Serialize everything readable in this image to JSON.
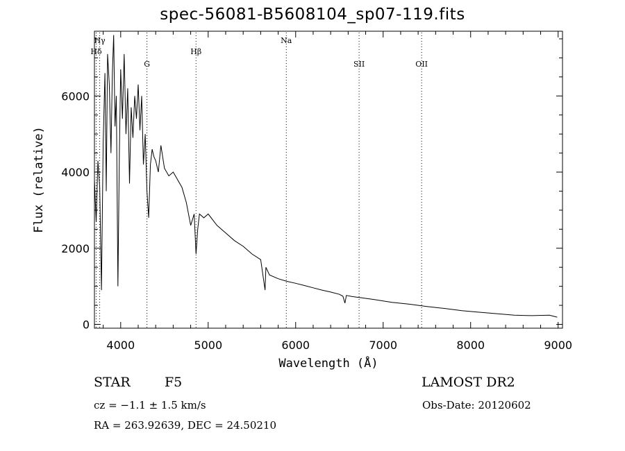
{
  "chart_data": {
    "type": "line",
    "title": "spec-56081-B5608104_sp07-119.fits",
    "xlabel": "Wavelength (Å)",
    "ylabel": "Flux (relative)",
    "xlim": [
      3700,
      9050
    ],
    "ylim": [
      -100,
      7700
    ],
    "x_ticks": [
      4000,
      5000,
      6000,
      7000,
      8000,
      9000
    ],
    "x_tick_labels": [
      "4000",
      "5000",
      "6000",
      "7000",
      "8000",
      "9000"
    ],
    "y_ticks": [
      0,
      2000,
      4000,
      6000
    ],
    "y_tick_labels": [
      "0",
      "2000",
      "4000",
      "6000"
    ],
    "grid": false,
    "line_color": "#000000",
    "series": [
      {
        "x": [
          3700,
          3720,
          3740,
          3760,
          3780,
          3800,
          3820,
          3835,
          3850,
          3870,
          3889,
          3905,
          3920,
          3935,
          3950,
          3968,
          3985,
          4000,
          4020,
          4040,
          4060,
          4080,
          4101,
          4120,
          4140,
          4160,
          4180,
          4200,
          4220,
          4240,
          4260,
          4280,
          4300,
          4320,
          4340,
          4360,
          4380,
          4400,
          4430,
          4460,
          4500,
          4550,
          4600,
          4650,
          4700,
          4750,
          4800,
          4840,
          4861,
          4880,
          4900,
          4950,
          5000,
          5100,
          5200,
          5300,
          5400,
          5500,
          5600,
          5650,
          5660,
          5700,
          5800,
          5900,
          6000,
          6100,
          6200,
          6300,
          6400,
          6500,
          6540,
          6563,
          6580,
          6650,
          6750,
          6900,
          7100,
          7300,
          7500,
          7700,
          7900,
          8100,
          8300,
          8500,
          8700,
          8900,
          8990
        ],
        "y": [
          3800,
          2700,
          4300,
          3600,
          900,
          4800,
          6600,
          3500,
          7100,
          6300,
          4500,
          6600,
          7600,
          5200,
          6000,
          1000,
          4500,
          6700,
          5400,
          7100,
          5000,
          6200,
          3700,
          5700,
          4900,
          6000,
          5400,
          6300,
          5100,
          6000,
          4200,
          5000,
          3500,
          2800,
          4200,
          4600,
          4400,
          4300,
          4000,
          4700,
          4100,
          3900,
          4000,
          3800,
          3600,
          3200,
          2600,
          2900,
          1850,
          2500,
          2900,
          2800,
          2900,
          2600,
          2400,
          2200,
          2050,
          1850,
          1700,
          900,
          1500,
          1300,
          1200,
          1130,
          1080,
          1020,
          960,
          900,
          850,
          790,
          740,
          560,
          760,
          730,
          700,
          650,
          580,
          530,
          470,
          420,
          360,
          320,
          280,
          240,
          230,
          240,
          190
        ]
      }
    ],
    "annotations": [
      {
        "label": "Hγ",
        "x": 3760,
        "row": 1
      },
      {
        "label": "Hδ",
        "x": 3720,
        "row": 2
      },
      {
        "label": "G",
        "x": 4300,
        "row": 3
      },
      {
        "label": "Hβ",
        "x": 4861,
        "row": 2
      },
      {
        "label": "Na",
        "x": 5893,
        "row": 1
      },
      {
        "label": "SII",
        "x": 6725,
        "row": 3
      },
      {
        "label": "OII",
        "x": 7440,
        "row": 3
      }
    ]
  },
  "footer": {
    "object_class": "STAR",
    "subclass": "F5",
    "survey": "LAMOST DR2",
    "cz": "cz = −1.1 ± 1.5 km/s",
    "obs_date": "Obs-Date: 20120602",
    "coords": "RA = 263.92639, DEC =  24.50210"
  }
}
